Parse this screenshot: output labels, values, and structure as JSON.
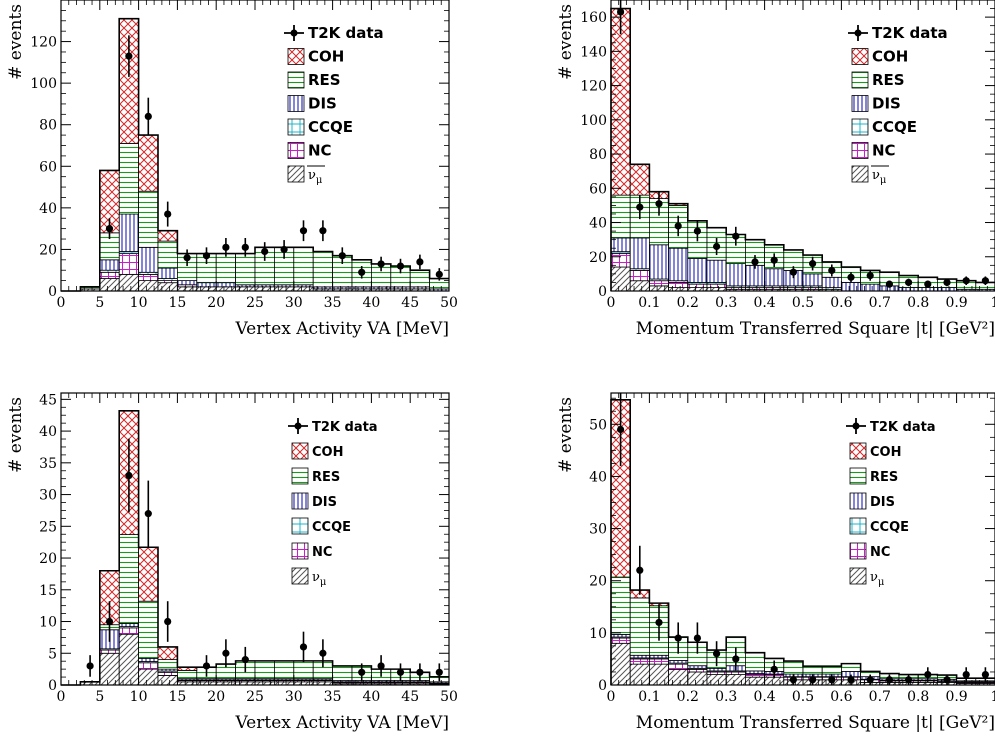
{
  "colors": {
    "COH": "#d62728",
    "RES": "#1a9a1a",
    "DIS": "#1f1fbf",
    "CCQE": "#1fb4c8",
    "NC": "#c81fc8",
    "nubar": "#555555",
    "data": "#000000"
  },
  "legend": [
    {
      "key": "data",
      "label": "T2K data"
    },
    {
      "key": "COH",
      "label": "COH"
    },
    {
      "key": "RES",
      "label": "RES"
    },
    {
      "key": "DIS",
      "label": "DIS"
    },
    {
      "key": "CCQE",
      "label": "CCQE"
    },
    {
      "key": "NC",
      "label": "NC"
    }
  ],
  "chart_data": [
    {
      "type": "bar",
      "stacked": true,
      "xlabel": "Vertex Activity VA [MeV]",
      "ylabel": "# events",
      "xlim": [
        0,
        50
      ],
      "ylim": [
        0,
        140
      ],
      "xticks": [
        0,
        5,
        10,
        15,
        20,
        25,
        30,
        35,
        40,
        45,
        50
      ],
      "yticks": [
        0,
        20,
        40,
        60,
        80,
        100,
        120
      ],
      "wrong_sign_label": "ν̄μ",
      "wrong_sign_bar": true,
      "bin_edges": [
        0,
        2.5,
        5,
        7.5,
        10,
        12.5,
        15,
        17.5,
        20,
        22.5,
        25,
        27.5,
        30,
        32.5,
        35,
        37.5,
        40,
        42.5,
        45,
        47.5,
        50
      ],
      "series": [
        {
          "key": "nubar",
          "values": [
            0,
            1,
            6,
            8,
            5,
            4,
            2,
            2,
            2,
            2,
            2,
            2,
            2,
            1,
            1,
            1,
            1,
            1,
            1,
            0
          ]
        },
        {
          "key": "NC",
          "values": [
            0,
            0,
            3,
            10,
            3,
            1,
            1,
            0,
            0,
            0,
            0,
            0,
            0,
            0,
            0,
            0,
            0,
            0,
            0,
            0
          ]
        },
        {
          "key": "CCQE",
          "values": [
            0,
            0,
            1,
            1,
            1,
            1,
            0,
            0,
            0,
            0,
            0,
            0,
            0,
            0,
            0,
            0,
            0,
            0,
            0,
            0
          ]
        },
        {
          "key": "DIS",
          "values": [
            0,
            0,
            5,
            18,
            12,
            5,
            2,
            2,
            2,
            1,
            1,
            1,
            1,
            1,
            1,
            1,
            1,
            1,
            1,
            1
          ]
        },
        {
          "key": "RES",
          "values": [
            0,
            1,
            13,
            34,
            27,
            13,
            13,
            14,
            14,
            15,
            18,
            18,
            18,
            17,
            15,
            13,
            11,
            10,
            8,
            5
          ]
        },
        {
          "key": "COH",
          "values": [
            0,
            0,
            30,
            60,
            27,
            5,
            0,
            0,
            0,
            0,
            0,
            0,
            0,
            0,
            0,
            0,
            0,
            0,
            0,
            0
          ]
        }
      ],
      "data": {
        "x": [
          6.25,
          8.75,
          11.25,
          13.75,
          16.25,
          18.75,
          21.25,
          23.75,
          26.25,
          28.75,
          31.25,
          33.75,
          36.25,
          38.75,
          41.25,
          43.75,
          46.25,
          48.75
        ],
        "y": [
          30,
          113,
          84,
          37,
          16,
          17,
          21,
          21,
          19,
          20,
          29,
          29,
          17,
          9,
          13,
          12,
          14,
          8
        ],
        "err": [
          5,
          10,
          9,
          6,
          4,
          4,
          4.5,
          4.5,
          4.5,
          4.5,
          5,
          5,
          4,
          3,
          3.5,
          3.5,
          3.5,
          3
        ]
      }
    },
    {
      "type": "bar",
      "stacked": true,
      "xlabel": "Momentum Transferred Square |t| [GeV²]",
      "ylabel": "# events",
      "xlim": [
        0,
        1
      ],
      "ylim": [
        0,
        170
      ],
      "xticks": [
        0,
        0.1,
        0.2,
        0.3,
        0.4,
        0.5,
        0.6,
        0.7,
        0.8,
        0.9,
        1
      ],
      "xtick_labels": [
        "0",
        "0.1",
        "0.2",
        "0.3",
        "0.4",
        "0.5",
        "0.6",
        "0.7",
        "0.8",
        "0.9",
        "1"
      ],
      "yticks": [
        0,
        20,
        40,
        60,
        80,
        100,
        120,
        140,
        160
      ],
      "wrong_sign_label": "ν̄μ",
      "wrong_sign_bar": true,
      "bin_edges": [
        0,
        0.05,
        0.1,
        0.15,
        0.2,
        0.25,
        0.3,
        0.35,
        0.4,
        0.45,
        0.5,
        0.55,
        0.6,
        0.65,
        0.7,
        0.75,
        0.8,
        0.85,
        0.9,
        0.95,
        1.0
      ],
      "series": [
        {
          "key": "nubar",
          "values": [
            14,
            6,
            3,
            2,
            2,
            2,
            1,
            1,
            1,
            1,
            1,
            1,
            0,
            0,
            0,
            0,
            0,
            0,
            0,
            0
          ]
        },
        {
          "key": "NC",
          "values": [
            8,
            6,
            3,
            3,
            2,
            2,
            1,
            1,
            1,
            1,
            1,
            0,
            0,
            0,
            0,
            0,
            0,
            0,
            0,
            0
          ]
        },
        {
          "key": "CCQE",
          "values": [
            1,
            1,
            1,
            1,
            1,
            1,
            1,
            1,
            1,
            1,
            1,
            1,
            0,
            0,
            0,
            0,
            0,
            0,
            0,
            0
          ]
        },
        {
          "key": "DIS",
          "values": [
            8,
            18,
            20,
            19,
            14,
            13,
            13,
            12,
            10,
            9,
            7,
            6,
            5,
            4,
            3,
            2,
            2,
            2,
            1,
            1
          ]
        },
        {
          "key": "RES",
          "values": [
            25,
            25,
            27,
            25,
            22,
            19,
            17,
            15,
            14,
            12,
            11,
            9,
            9,
            8,
            8,
            7,
            6,
            5,
            5,
            4
          ]
        },
        {
          "key": "COH",
          "values": [
            109,
            18,
            4,
            1,
            0,
            0,
            0,
            0,
            0,
            0,
            0,
            0,
            0,
            0,
            0,
            0,
            0,
            0,
            0,
            0
          ]
        }
      ],
      "data": {
        "x": [
          0.025,
          0.075,
          0.125,
          0.175,
          0.225,
          0.275,
          0.325,
          0.375,
          0.425,
          0.475,
          0.525,
          0.575,
          0.625,
          0.675,
          0.725,
          0.775,
          0.825,
          0.875,
          0.925,
          0.975
        ],
        "y": [
          163,
          49,
          51,
          38,
          35,
          26,
          32,
          17,
          18,
          11,
          16,
          12,
          8,
          9,
          4,
          5,
          4,
          5,
          6,
          6
        ],
        "err": [
          13,
          7,
          7,
          6,
          6,
          5,
          5.5,
          4,
          4,
          3.5,
          4,
          3.5,
          3,
          3,
          2,
          2.2,
          2,
          2.2,
          2.5,
          2.5
        ]
      }
    },
    {
      "type": "bar",
      "stacked": true,
      "xlabel": "Vertex Activity VA [MeV]",
      "ylabel": "# events",
      "xlim": [
        0,
        50
      ],
      "ylim": [
        0,
        46
      ],
      "xticks": [
        0,
        5,
        10,
        15,
        20,
        25,
        30,
        35,
        40,
        45,
        50
      ],
      "yticks": [
        0,
        5,
        10,
        15,
        20,
        25,
        30,
        35,
        40,
        45
      ],
      "wrong_sign_label": "νμ",
      "wrong_sign_bar": false,
      "bin_edges": [
        0,
        2.5,
        5,
        7.5,
        10,
        12.5,
        15,
        17.5,
        20,
        22.5,
        25,
        27.5,
        30,
        32.5,
        35,
        37.5,
        40,
        42.5,
        45,
        47.5,
        50
      ],
      "series": [
        {
          "key": "nubar",
          "values": [
            0,
            0.5,
            5,
            8,
            2.5,
            1.5,
            0.5,
            0.5,
            0.5,
            0.5,
            0.5,
            0.5,
            0.5,
            0.5,
            0.2,
            0.2,
            0.2,
            0.2,
            0.2,
            0.1
          ]
        },
        {
          "key": "NC",
          "values": [
            0,
            0,
            0.5,
            1,
            1,
            0.5,
            0.2,
            0.2,
            0.2,
            0.2,
            0.2,
            0.2,
            0.2,
            0.2,
            0.2,
            0.2,
            0.2,
            0.2,
            0.2,
            0.1
          ]
        },
        {
          "key": "CCQE",
          "values": [
            0,
            0,
            0.2,
            0.2,
            0.2,
            0.2,
            0.1,
            0.1,
            0.1,
            0.1,
            0.1,
            0.1,
            0.1,
            0.1,
            0.1,
            0.1,
            0.1,
            0.1,
            0.1,
            0.1
          ]
        },
        {
          "key": "DIS",
          "values": [
            0,
            0,
            3,
            0.5,
            0.5,
            0.3,
            0.2,
            0.2,
            0.2,
            0.2,
            0.2,
            0.2,
            0.2,
            0.2,
            0.2,
            0.2,
            0.2,
            0.2,
            0.2,
            0.2
          ]
        },
        {
          "key": "RES",
          "values": [
            0,
            0,
            0.8,
            14,
            9,
            1.5,
            1.3,
            1.8,
            2.3,
            2.8,
            2.8,
            2.8,
            2.8,
            2.8,
            2.3,
            2.3,
            1.8,
            1.8,
            1.3,
            0.8
          ]
        },
        {
          "key": "COH",
          "values": [
            0,
            0,
            8.5,
            19.5,
            8.5,
            2,
            0.5,
            0,
            0,
            0,
            0,
            0,
            0,
            0,
            0,
            0,
            0,
            0,
            0,
            0
          ]
        }
      ],
      "data": {
        "x": [
          3.75,
          6.25,
          8.75,
          11.25,
          13.75,
          18.75,
          21.25,
          23.75,
          31.25,
          33.75,
          38.75,
          41.25,
          43.75,
          46.25,
          48.75
        ],
        "y": [
          3,
          10,
          33,
          27,
          10,
          3,
          5,
          4,
          6,
          5,
          2,
          3,
          2,
          2,
          2
        ],
        "err": [
          1.7,
          3.2,
          5.8,
          5.2,
          3.2,
          1.7,
          2.2,
          2,
          2.4,
          2.2,
          1.4,
          1.7,
          1.4,
          1.4,
          1.4
        ]
      }
    },
    {
      "type": "bar",
      "stacked": true,
      "xlabel": "Momentum Transferred Square |t| [GeV²]",
      "ylabel": "# events",
      "xlim": [
        0,
        1
      ],
      "ylim": [
        0,
        56
      ],
      "xticks": [
        0,
        0.1,
        0.2,
        0.3,
        0.4,
        0.5,
        0.6,
        0.7,
        0.8,
        0.9,
        1
      ],
      "xtick_labels": [
        "0",
        "0.1",
        "0.2",
        "0.3",
        "0.4",
        "0.5",
        "0.6",
        "0.7",
        "0.8",
        "0.9",
        "1"
      ],
      "yticks": [
        0,
        10,
        20,
        30,
        40,
        50
      ],
      "wrong_sign_label": "νμ",
      "wrong_sign_bar": false,
      "bin_edges": [
        0,
        0.05,
        0.1,
        0.15,
        0.2,
        0.25,
        0.3,
        0.35,
        0.4,
        0.45,
        0.5,
        0.55,
        0.6,
        0.65,
        0.7,
        0.75,
        0.8,
        0.85,
        0.9,
        0.95,
        1.0
      ],
      "series": [
        {
          "key": "nubar",
          "values": [
            8,
            4,
            4,
            3,
            2.5,
            2,
            2,
            1.5,
            1.5,
            1,
            1,
            1,
            1,
            0.5,
            0.5,
            0.5,
            0.5,
            0.5,
            0.3,
            0.3
          ]
        },
        {
          "key": "NC",
          "values": [
            1,
            1,
            1,
            1,
            0.5,
            0.5,
            0.5,
            0.5,
            0.5,
            0.5,
            0.5,
            0.5,
            0.5,
            0.5,
            0.3,
            0.3,
            0.3,
            0.2,
            0.2,
            0.2
          ]
        },
        {
          "key": "CCQE",
          "values": [
            0.2,
            0.2,
            0.2,
            0.2,
            0.2,
            0.2,
            0.2,
            0.2,
            0.1,
            0.1,
            0.1,
            0.1,
            0.1,
            0.1,
            0.1,
            0.1,
            0.1,
            0.1,
            0.1,
            0.1
          ]
        },
        {
          "key": "DIS",
          "values": [
            0.5,
            0.5,
            0.5,
            0.5,
            0.5,
            0.5,
            1,
            0.5,
            0.5,
            0.5,
            0.5,
            0.5,
            1,
            0.5,
            0.3,
            0.3,
            0.3,
            0.3,
            0.2,
            0.2
          ]
        },
        {
          "key": "RES",
          "values": [
            11,
            11,
            9.5,
            4.5,
            4.5,
            3.5,
            5.5,
            3.5,
            2.5,
            2.5,
            1.5,
            1.5,
            1.5,
            1,
            1,
            0.8,
            0.8,
            0.8,
            0.5,
            0.5
          ]
        },
        {
          "key": "COH",
          "values": [
            34,
            1.5,
            0.5,
            0,
            0,
            0,
            0,
            0,
            0,
            0,
            0,
            0,
            0,
            0,
            0,
            0,
            0,
            0,
            0,
            0
          ]
        }
      ],
      "data": {
        "x": [
          0.025,
          0.075,
          0.125,
          0.175,
          0.225,
          0.275,
          0.325,
          0.425,
          0.475,
          0.525,
          0.575,
          0.625,
          0.675,
          0.725,
          0.775,
          0.825,
          0.875,
          0.925,
          0.975
        ],
        "y": [
          49,
          22,
          12,
          9,
          9,
          6,
          5,
          3,
          1,
          1,
          1,
          1,
          1,
          1,
          1,
          2,
          1,
          2,
          2
        ],
        "err": [
          7,
          4.7,
          3.5,
          3,
          3,
          2.4,
          2.2,
          1.7,
          1,
          1,
          1,
          1,
          1,
          1,
          1,
          1.4,
          1,
          1.4,
          1.4
        ]
      }
    }
  ]
}
